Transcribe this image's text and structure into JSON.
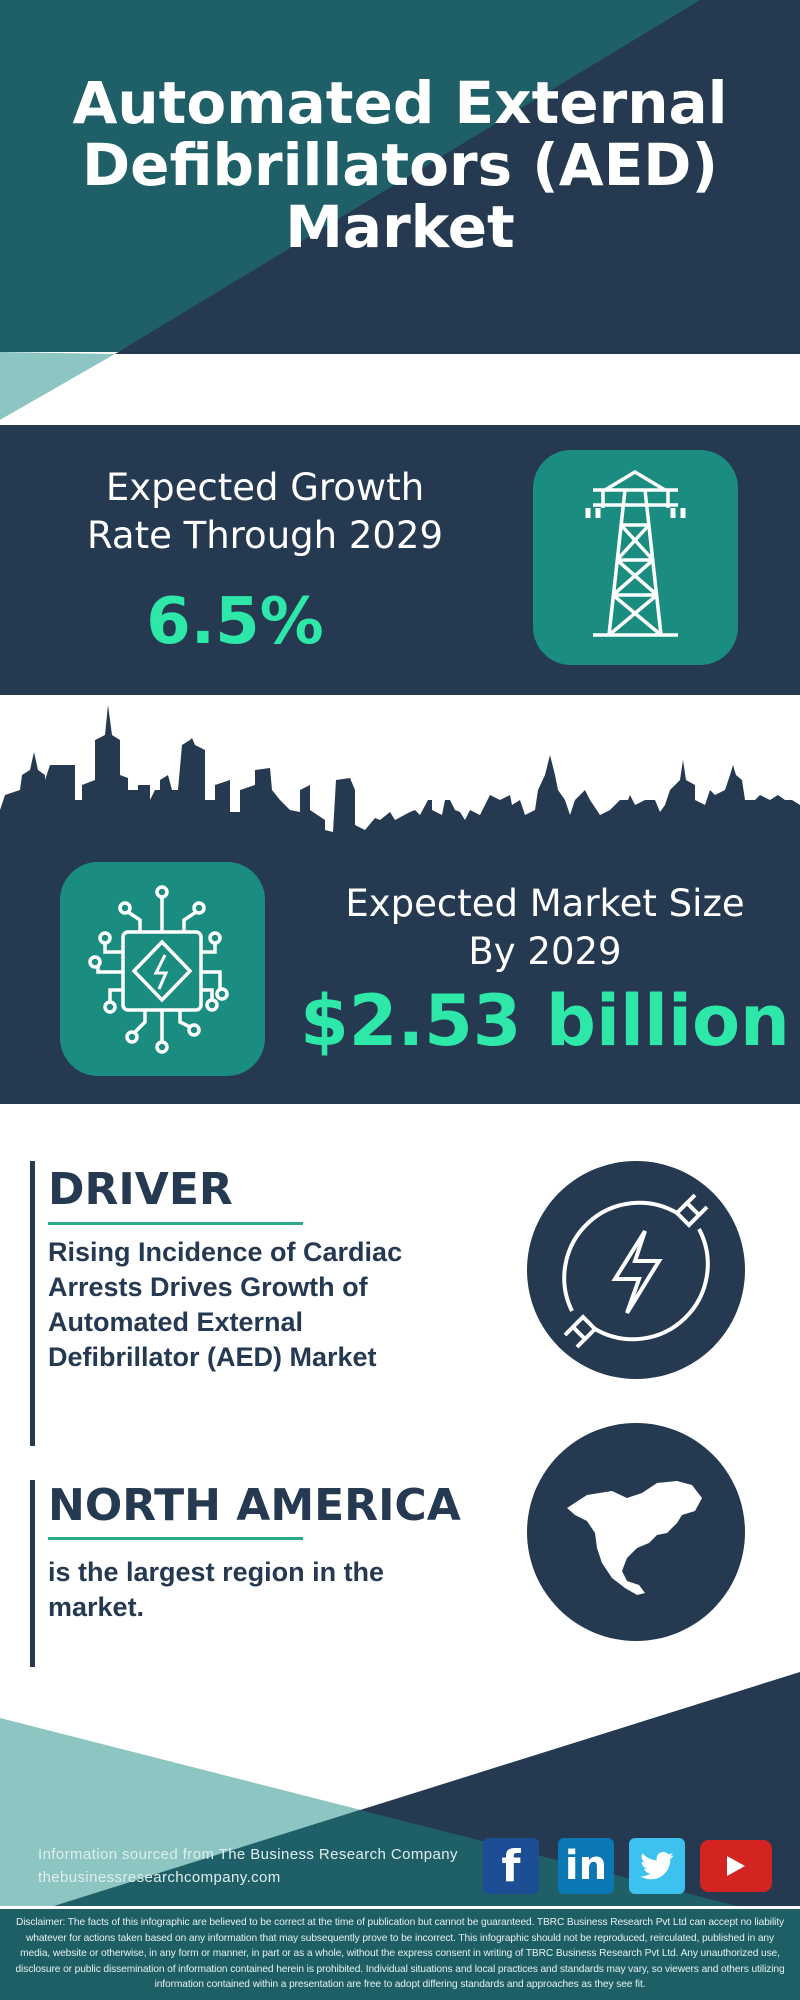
{
  "header": {
    "title_lines": [
      "Automated External",
      "Defibrillators (AED)",
      "Market"
    ]
  },
  "growth": {
    "label_lines": [
      "Expected Growth",
      "Rate Through 2029"
    ],
    "value": "6.5%",
    "icon": "transmission-tower-icon"
  },
  "market_size": {
    "label_lines": [
      "Expected Market Size",
      "By 2029"
    ],
    "value": "$2.53 billion",
    "icon": "circuit-chip-lightning-icon"
  },
  "driver": {
    "heading": "DRIVER",
    "text_lines": [
      "Rising Incidence of Cardiac",
      "Arrests Drives Growth of",
      "Automated External",
      "Defibrillator (AED) Market"
    ],
    "icon": "electric-plug-lightning-icon"
  },
  "region": {
    "heading": "NORTH AMERICA",
    "text_lines": [
      "is the largest region in the",
      "market."
    ],
    "icon": "north-america-map-icon"
  },
  "footer": {
    "source": "Information sourced from The Business Research Company",
    "website": "thebusinessresearchcompany.com",
    "social": [
      "facebook",
      "linkedin",
      "twitter",
      "youtube"
    ]
  },
  "disclaimer": "Disclaimer: The facts of this infographic are believed to be correct at the time of publication but cannot be guaranteed. TBRC Business Research Pvt Ltd can accept no liability whatever for actions taken based on any information that may subsequently prove to be incorrect. This infographic should not be reproduced, reirculated, published in any media, website or otherwise, in any form or manner, in part or as a whole, without the express consent in writing of TBRC Business Research Pvt Ltd. Any unauthorized use, disclosure or public dissemination of information contained herein is prohibited. Individual situations and local practices and standards may vary, so viewers and others utilizing information contained within a presentation are free to adopt differing standards and approaches as they see fit.",
  "colors": {
    "dark": "#253951",
    "teal": "#1f6068",
    "light_teal": "#8cc5c1",
    "accent_green": "#2de8a8",
    "icon_box": "#1b8d80"
  }
}
